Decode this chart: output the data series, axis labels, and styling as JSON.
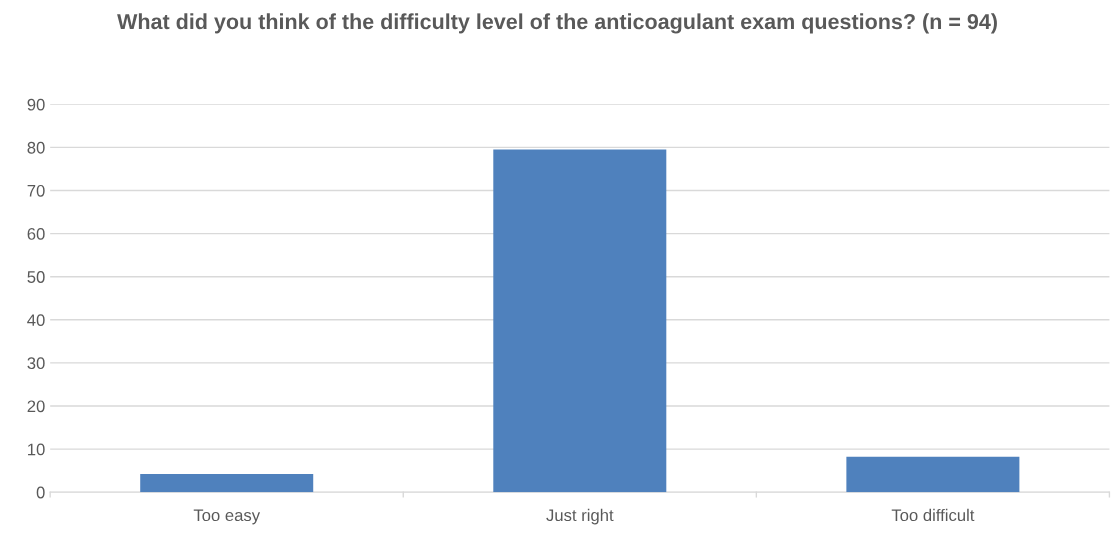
{
  "chart_data": {
    "type": "bar",
    "title": "What did you think of the difficulty level of the anticoagulant exam questions? (n = 94)",
    "categories": [
      "Too easy",
      "Just right",
      "Too difficult"
    ],
    "values": [
      4.2,
      79.5,
      8.2
    ],
    "color": "#4f81bd",
    "ylim": [
      0,
      90
    ],
    "yticks": [
      0,
      10,
      20,
      30,
      40,
      50,
      60,
      70,
      80,
      90
    ],
    "grid": "y"
  }
}
